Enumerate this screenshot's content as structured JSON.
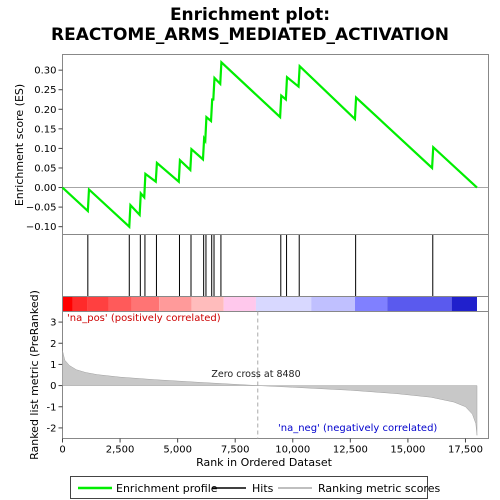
{
  "chart_data": {
    "type": "line",
    "title_line1": "Enrichment plot:",
    "title_line2": "REACTOME_ARMS_MEDIATED_ACTIVATION",
    "es_panel": {
      "ylabel": "Enrichment score (ES)",
      "ylim": [
        -0.12,
        0.34
      ],
      "yticks": [
        -0.1,
        -0.05,
        0.0,
        0.05,
        0.1,
        0.15,
        0.2,
        0.25,
        0.3
      ],
      "ytick_labels": [
        "−0.10",
        "−0.05",
        "0.00",
        "0.05",
        "0.10",
        "0.15",
        "0.20",
        "0.25",
        "0.30"
      ],
      "series_name": "Enrichment profile",
      "color": "#00ff00",
      "points": [
        [
          0,
          0.0
        ],
        [
          1100,
          -0.06
        ],
        [
          1150,
          -0.005
        ],
        [
          2900,
          -0.1
        ],
        [
          2950,
          -0.045
        ],
        [
          3350,
          -0.07
        ],
        [
          3400,
          -0.015
        ],
        [
          3550,
          -0.025
        ],
        [
          3600,
          0.035
        ],
        [
          4050,
          0.015
        ],
        [
          4100,
          0.063
        ],
        [
          5050,
          0.015
        ],
        [
          5100,
          0.07
        ],
        [
          5550,
          0.045
        ],
        [
          5600,
          0.098
        ],
        [
          6100,
          0.072
        ],
        [
          6150,
          0.125
        ],
        [
          6200,
          0.12
        ],
        [
          6250,
          0.18
        ],
        [
          6450,
          0.17
        ],
        [
          6500,
          0.225
        ],
        [
          6550,
          0.225
        ],
        [
          6600,
          0.28
        ],
        [
          6850,
          0.265
        ],
        [
          6900,
          0.32
        ],
        [
          9450,
          0.18
        ],
        [
          9500,
          0.235
        ],
        [
          9700,
          0.225
        ],
        [
          9750,
          0.282
        ],
        [
          10250,
          0.258
        ],
        [
          10300,
          0.31
        ],
        [
          12700,
          0.175
        ],
        [
          12750,
          0.23
        ],
        [
          16050,
          0.05
        ],
        [
          16100,
          0.103
        ],
        [
          18000,
          0.0
        ]
      ]
    },
    "hits": {
      "series_name": "Hits",
      "positions": [
        1100,
        2900,
        3380,
        3580,
        4080,
        5080,
        5580,
        6130,
        6230,
        6480,
        6580,
        6880,
        9480,
        9730,
        10280,
        12730,
        16080
      ]
    },
    "ranked_panel": {
      "ylabel": "Ranked list metric (PreRanked)",
      "xlabel": "Rank in Ordered Dataset",
      "ylim": [
        -2.5,
        3.5
      ],
      "yticks": [
        -2,
        -1,
        0,
        1,
        2,
        3
      ],
      "ytick_labels": [
        "-2",
        "-1",
        "0",
        "1",
        "2",
        "3"
      ],
      "xlim": [
        0,
        18500
      ],
      "xticks": [
        0,
        2500,
        5000,
        7500,
        10000,
        12500,
        15000,
        17500
      ],
      "xtick_labels": [
        "0",
        "2,500",
        "5,000",
        "7,500",
        "10,000",
        "12,500",
        "15,000",
        "17,500"
      ],
      "series_name": "Ranking metric scores",
      "zero_cross_label": "Zero cross at 8480",
      "zero_cross": 8480,
      "pos_label": "'na_pos' (positively correlated)",
      "neg_label": "'na_neg' (negatively correlated)",
      "pos_color": "#ff0000",
      "neg_color": "#0000ff",
      "metric": [
        [
          0,
          1.65
        ],
        [
          100,
          1.2
        ],
        [
          300,
          0.95
        ],
        [
          600,
          0.75
        ],
        [
          1000,
          0.62
        ],
        [
          1500,
          0.52
        ],
        [
          2500,
          0.4
        ],
        [
          4000,
          0.28
        ],
        [
          6000,
          0.15
        ],
        [
          8480,
          0.0
        ],
        [
          10000,
          -0.08
        ],
        [
          12500,
          -0.22
        ],
        [
          14500,
          -0.38
        ],
        [
          16000,
          -0.55
        ],
        [
          17000,
          -0.78
        ],
        [
          17500,
          -1.0
        ],
        [
          17800,
          -1.35
        ],
        [
          17950,
          -1.8
        ],
        [
          18000,
          -2.35
        ]
      ]
    },
    "colorbar": {
      "segments": [
        [
          "#ff0000",
          0,
          450
        ],
        [
          "#ff2a2a",
          450,
          1100
        ],
        [
          "#ff4040",
          1100,
          2000
        ],
        [
          "#ff5a5a",
          2000,
          3000
        ],
        [
          "#ff7474",
          3000,
          4200
        ],
        [
          "#ff9a9a",
          4200,
          5600
        ],
        [
          "#ffbcbc",
          5600,
          7000
        ],
        [
          "#ffc8ec",
          7000,
          8400
        ],
        [
          "#d8d8ff",
          8400,
          10800
        ],
        [
          "#c0c0ff",
          10800,
          12700
        ],
        [
          "#8080ff",
          12700,
          14100
        ],
        [
          "#5a5aee",
          14100,
          16900
        ],
        [
          "#2020cc",
          16900,
          18000
        ]
      ]
    },
    "legend": {
      "items": [
        "Enrichment profile",
        "Hits",
        "Ranking metric scores"
      ]
    }
  }
}
